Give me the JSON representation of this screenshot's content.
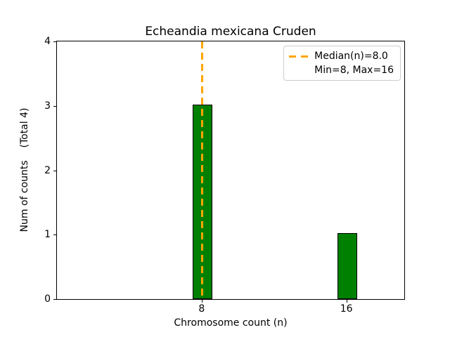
{
  "chart_data": {
    "type": "bar",
    "title": "Echeandia mexicana Cruden",
    "xlabel": "Chromosome count (n)",
    "ylabel": "Num of counts    (Total 4)",
    "categories": [
      8,
      16
    ],
    "values": [
      3,
      1
    ],
    "bar_width": 1.0,
    "bar_color": "#008000",
    "bar_edge_color": "#000000",
    "xlim": [
      0,
      19.2
    ],
    "ylim": [
      0,
      4
    ],
    "yticks": [
      0,
      1,
      2,
      3,
      4
    ],
    "grid": false,
    "median_line": {
      "value": 8.0,
      "color": "#ffa500",
      "style": "dashed"
    },
    "legend": {
      "position": "upper right",
      "entries": [
        "Median(n)=8.0",
        "Min=8, Max=16"
      ]
    }
  }
}
